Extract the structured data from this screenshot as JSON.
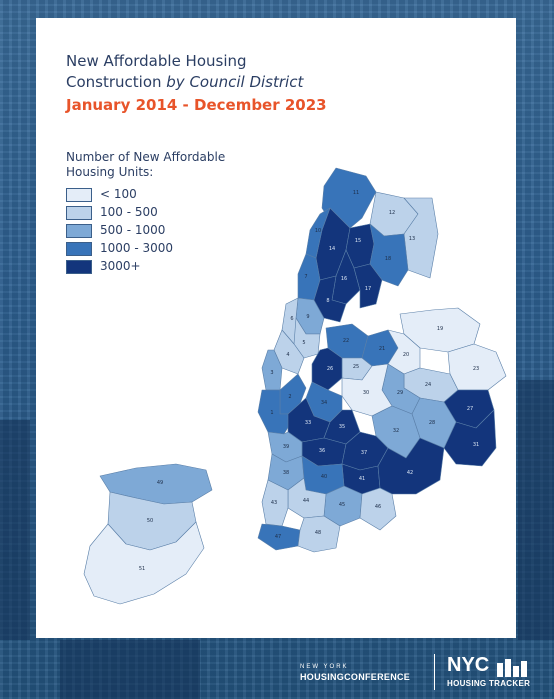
{
  "title": {
    "line1": "New Affordable Housing",
    "line2_plain": "Construction ",
    "line2_italic": "by Council District",
    "period": "January 2014 - December 2023"
  },
  "legend": {
    "title": "Number of New Affordable Housing Units:",
    "items": [
      {
        "label": "< 100",
        "color": "#e4edf8"
      },
      {
        "label": "100 - 500",
        "color": "#bcd2ea"
      },
      {
        "label": "500 - 1000",
        "color": "#7ea9d6"
      },
      {
        "label": "1000 - 3000",
        "color": "#3874b9"
      },
      {
        "label": "3000+",
        "color": "#13357c"
      }
    ]
  },
  "districts": [
    {
      "id": "11",
      "category": 3
    },
    {
      "id": "12",
      "category": 1
    },
    {
      "id": "13",
      "category": 1
    },
    {
      "id": "14",
      "category": 4
    },
    {
      "id": "15",
      "category": 4
    },
    {
      "id": "16",
      "category": 4
    },
    {
      "id": "18",
      "category": 3
    },
    {
      "id": "17",
      "category": 4
    },
    {
      "id": "10",
      "category": 3
    },
    {
      "id": "7",
      "category": 3
    },
    {
      "id": "9",
      "category": 2
    },
    {
      "id": "8",
      "category": 4
    },
    {
      "id": "6",
      "category": 1
    },
    {
      "id": "5",
      "category": 1
    },
    {
      "id": "4",
      "category": 1
    },
    {
      "id": "3",
      "category": 2
    },
    {
      "id": "2",
      "category": 3
    },
    {
      "id": "1",
      "category": 3
    },
    {
      "id": "22",
      "category": 3
    },
    {
      "id": "21",
      "category": 3
    },
    {
      "id": "25",
      "category": 1
    },
    {
      "id": "26",
      "category": 4
    },
    {
      "id": "19",
      "category": 0
    },
    {
      "id": "20",
      "category": 0
    },
    {
      "id": "23",
      "category": 0
    },
    {
      "id": "24",
      "category": 1
    },
    {
      "id": "29",
      "category": 2
    },
    {
      "id": "30",
      "category": 0
    },
    {
      "id": "27",
      "category": 4
    },
    {
      "id": "31",
      "category": 4
    },
    {
      "id": "28",
      "category": 2
    },
    {
      "id": "32",
      "category": 2
    },
    {
      "id": "34",
      "category": 3
    },
    {
      "id": "33",
      "category": 4
    },
    {
      "id": "35",
      "category": 4
    },
    {
      "id": "36",
      "category": 4
    },
    {
      "id": "37",
      "category": 4
    },
    {
      "id": "41",
      "category": 4
    },
    {
      "id": "42",
      "category": 4
    },
    {
      "id": "39",
      "category": 2
    },
    {
      "id": "38",
      "category": 2
    },
    {
      "id": "40",
      "category": 3
    },
    {
      "id": "45",
      "category": 2
    },
    {
      "id": "46",
      "category": 1
    },
    {
      "id": "44",
      "category": 1
    },
    {
      "id": "43",
      "category": 1
    },
    {
      "id": "47",
      "category": 3
    },
    {
      "id": "48",
      "category": 1
    },
    {
      "id": "49",
      "category": 2
    },
    {
      "id": "50",
      "category": 1
    },
    {
      "id": "51",
      "category": 0
    }
  ],
  "footer": {
    "hc_top": "NEW YORK",
    "hc_main": "HOUSINGCONFERENCE",
    "nyc": "NYC",
    "tracker": "HOUSING TRACKER"
  }
}
